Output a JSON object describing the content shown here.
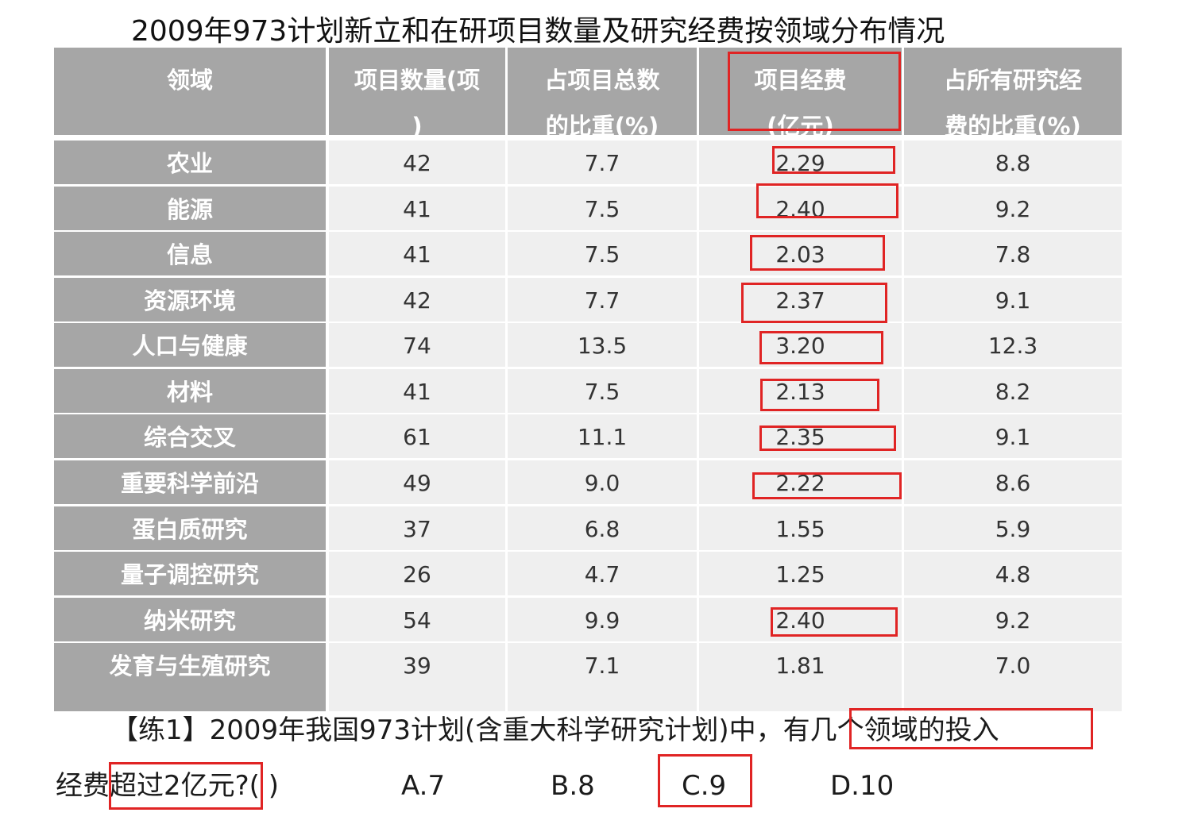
{
  "title": "2009年973计划新立和在研项目数量及研究经费按领域分布情况",
  "table": {
    "headers": [
      {
        "line1": "领域",
        "line2": ""
      },
      {
        "line1": "项目数量(项",
        "line2": ")"
      },
      {
        "line1": "占项目总数",
        "line2": "的比重(%)"
      },
      {
        "line1": "项目经费",
        "line2": "(亿元)"
      },
      {
        "line1": "占所有研究经",
        "line2": "费的比重(%)"
      }
    ],
    "rows": [
      {
        "field": "农业",
        "count": "42",
        "share": "7.7",
        "funds": "2.29",
        "fund_share": "8.8"
      },
      {
        "field": "能源",
        "count": "41",
        "share": "7.5",
        "funds": "2.40",
        "fund_share": "9.2"
      },
      {
        "field": "信息",
        "count": "41",
        "share": "7.5",
        "funds": "2.03",
        "fund_share": "7.8"
      },
      {
        "field": "资源环境",
        "count": "42",
        "share": "7.7",
        "funds": "2.37",
        "fund_share": "9.1"
      },
      {
        "field": "人口与健康",
        "count": "74",
        "share": "13.5",
        "funds": "3.20",
        "fund_share": "12.3"
      },
      {
        "field": "材料",
        "count": "41",
        "share": "7.5",
        "funds": "2.13",
        "fund_share": "8.2"
      },
      {
        "field": "综合交叉",
        "count": "61",
        "share": "11.1",
        "funds": "2.35",
        "fund_share": "9.1"
      },
      {
        "field": "重要科学前沿",
        "count": "49",
        "share": "9.0",
        "funds": "2.22",
        "fund_share": "8.6"
      },
      {
        "field": "蛋白质研究",
        "count": "37",
        "share": "6.8",
        "funds": "1.55",
        "fund_share": "5.9"
      },
      {
        "field": "量子调控研究",
        "count": "26",
        "share": "4.7",
        "funds": "1.25",
        "fund_share": "4.8"
      },
      {
        "field": "纳米研究",
        "count": "54",
        "share": "9.9",
        "funds": "2.40",
        "fund_share": "9.2"
      },
      {
        "field": "发育与生殖研究",
        "count": "39",
        "share": "7.1",
        "funds": "1.81",
        "fund_share": "7.0"
      }
    ]
  },
  "question": {
    "line1": "【练1】2009年我国973计划(含重大科学研究计划)中，有几个领域的投入",
    "line2": "经费超过2亿元?(    )",
    "options": [
      "A.7",
      "B.8",
      "C.9",
      "D.10"
    ]
  },
  "colors": {
    "header_bg": "#a6a6a6",
    "cell_bg": "#efefef",
    "highlight": "#e02424"
  }
}
